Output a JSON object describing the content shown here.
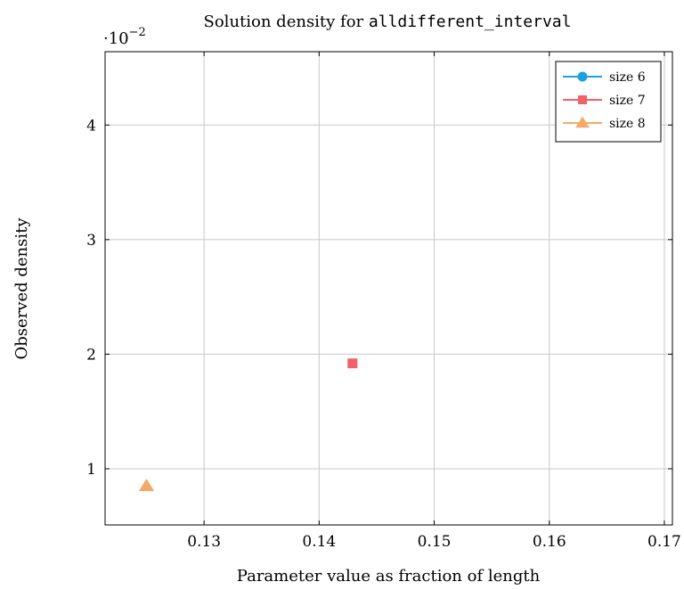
{
  "chart_data": {
    "type": "scatter",
    "title_prefix": "Solution density for ",
    "title_code": "alldifferent_interval",
    "xlabel": "Parameter value as fraction of length",
    "ylabel": "Observed density",
    "y_multiplier_label": "·10",
    "y_multiplier_exp": "−2",
    "xlim": [
      0.1214,
      0.1707
    ],
    "ylim": [
      0.0051,
      0.0464
    ],
    "xticks": [
      0.13,
      0.14,
      0.15,
      0.16,
      0.17
    ],
    "xtick_labels": [
      "0.13",
      "0.14",
      "0.15",
      "0.16",
      "0.17"
    ],
    "yticks": [
      0.01,
      0.02,
      0.03,
      0.04
    ],
    "ytick_labels": [
      "1",
      "2",
      "3",
      "4"
    ],
    "grid": true,
    "legend_position": "top-right",
    "series": [
      {
        "name": "size 6",
        "color": "#1ba1e2",
        "marker": "circle",
        "points": []
      },
      {
        "name": "size 7",
        "color": "#f0626a",
        "marker": "square",
        "points": [
          [
            0.1429,
            0.0192
          ]
        ]
      },
      {
        "name": "size 8",
        "color": "#f4a96a",
        "marker": "triangle",
        "points": [
          [
            0.125,
            0.0085
          ]
        ]
      }
    ]
  }
}
